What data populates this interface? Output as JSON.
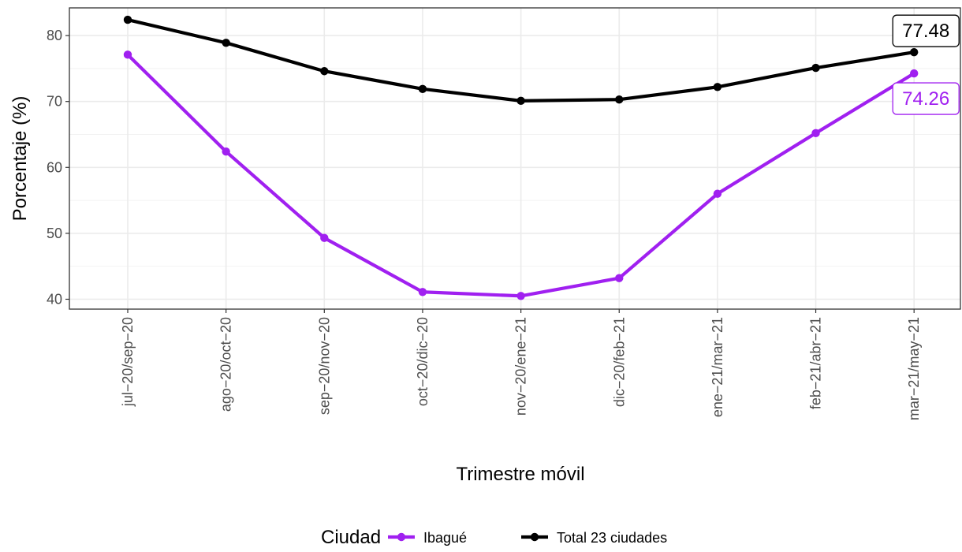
{
  "chart_data": {
    "type": "line",
    "title": "",
    "xlabel": "Trimestre móvil",
    "ylabel": "Porcentaje (%)",
    "categories": [
      "jul−20/sep−20",
      "ago−20/oct−20",
      "sep−20/nov−20",
      "oct−20/dic−20",
      "nov−20/ene−21",
      "dic−20/feb−21",
      "ene−21/mar−21",
      "feb−21/abr−21",
      "mar−21/may−21"
    ],
    "y_ticks": [
      "40",
      "50",
      "60",
      "70",
      "80"
    ],
    "ylim": [
      38.5,
      84.2
    ],
    "grid": true,
    "legend": {
      "title": "Ciudad",
      "position": "bottom"
    },
    "series": [
      {
        "name": "Ibagué",
        "color": "#a020f0",
        "values": [
          77.1,
          62.4,
          49.3,
          41.1,
          40.5,
          43.2,
          56.0,
          65.2,
          74.26
        ],
        "end_label": "74.26"
      },
      {
        "name": "Total 23 ciudades",
        "color": "#000000",
        "values": [
          82.4,
          78.9,
          74.6,
          71.9,
          70.1,
          70.3,
          72.2,
          75.1,
          77.48
        ],
        "end_label": "77.48"
      }
    ]
  }
}
